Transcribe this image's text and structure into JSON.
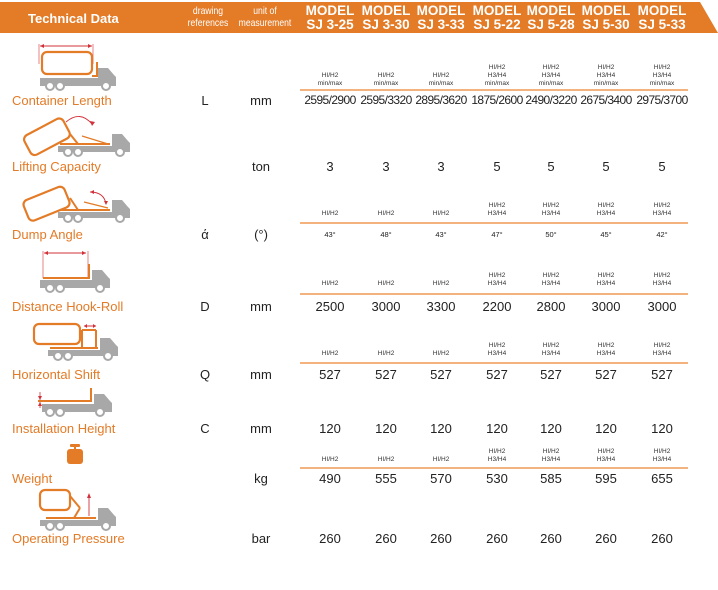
{
  "header": {
    "title": "Technical Data",
    "drawing_references_line1": "drawing",
    "drawing_references_line2": "references",
    "unit_line1": "unit of",
    "unit_line2": "measurement",
    "models": [
      {
        "line1": "MODEL",
        "line2": "SJ 3-25"
      },
      {
        "line1": "MODEL",
        "line2": "SJ 3-30"
      },
      {
        "line1": "MODEL",
        "line2": "SJ 3-33"
      },
      {
        "line1": "MODEL",
        "line2": "SJ 5-22"
      },
      {
        "line1": "MODEL",
        "line2": "SJ 5-28"
      },
      {
        "line1": "MODEL",
        "line2": "SJ 5-30"
      },
      {
        "line1": "MODEL",
        "line2": "SJ 5-33"
      }
    ]
  },
  "colors": {
    "accent": "#E37B27",
    "separator": "#F4B37E",
    "truck_gray": "#A8A8A8",
    "arrow_red": "#D3313A"
  },
  "rows": [
    {
      "label": "Container Length",
      "ref": "L",
      "unit": "mm",
      "icon": "container-length-icon",
      "notes": [
        {
          "l1": "",
          "l2": "HI/H2",
          "l3": "min/max"
        },
        {
          "l1": "",
          "l2": "HI/H2",
          "l3": "min/max"
        },
        {
          "l1": "",
          "l2": "HI/H2",
          "l3": "min/max"
        },
        {
          "l1": "HI/H2",
          "l2": "H3/H4",
          "l3": "min/max"
        },
        {
          "l1": "HI/H2",
          "l2": "H3/H4",
          "l3": "min/max"
        },
        {
          "l1": "HI/H2",
          "l2": "H3/H4",
          "l3": "min/max"
        },
        {
          "l1": "HI/H2",
          "l2": "H3/H4",
          "l3": "min/max"
        }
      ],
      "values": [
        "2595/2900",
        "2595/3320",
        "2895/3620",
        "1875/2600",
        "2490/3220",
        "2675/3400",
        "2975/3700"
      ]
    },
    {
      "label": "Lifting Capacity",
      "ref": "",
      "unit": "ton",
      "icon": "lifting-capacity-icon",
      "values": [
        "3",
        "3",
        "3",
        "5",
        "5",
        "5",
        "5"
      ]
    },
    {
      "label": "Dump Angle",
      "ref": "ά",
      "unit": "(°)",
      "icon": "dump-angle-icon",
      "notes": [
        {
          "l1": "",
          "l2": "HI/H2"
        },
        {
          "l1": "",
          "l2": "HI/H2"
        },
        {
          "l1": "",
          "l2": "HI/H2"
        },
        {
          "l1": "HI/H2",
          "l2": "H3/H4"
        },
        {
          "l1": "HI/H2",
          "l2": "H3/H4"
        },
        {
          "l1": "HI/H2",
          "l2": "H3/H4"
        },
        {
          "l1": "HI/H2",
          "l2": "H3/H4"
        }
      ],
      "values": [
        "43°",
        "48°",
        "43°",
        "47°",
        "50°",
        "45°",
        "42°"
      ]
    },
    {
      "label": "Distance Hook-Roll",
      "ref": "D",
      "unit": "mm",
      "icon": "distance-hook-roll-icon",
      "notes": [
        {
          "l1": "",
          "l2": "HI/H2"
        },
        {
          "l1": "",
          "l2": "HI/H2"
        },
        {
          "l1": "",
          "l2": "HI/H2"
        },
        {
          "l1": "HI/H2",
          "l2": "H3/H4"
        },
        {
          "l1": "HI/H2",
          "l2": "H3/H4"
        },
        {
          "l1": "HI/H2",
          "l2": "H3/H4"
        },
        {
          "l1": "HI/H2",
          "l2": "H3/H4"
        }
      ],
      "values": [
        "2500",
        "3000",
        "3300",
        "2200",
        "2800",
        "3000",
        "3000"
      ]
    },
    {
      "label": "Horizontal Shift",
      "ref": "Q",
      "unit": "mm",
      "icon": "horizontal-shift-icon",
      "notes": [
        {
          "l1": "",
          "l2": "HI/H2"
        },
        {
          "l1": "",
          "l2": "HI/H2"
        },
        {
          "l1": "",
          "l2": "HI/H2"
        },
        {
          "l1": "HI/H2",
          "l2": "H3/H4"
        },
        {
          "l1": "HI/H2",
          "l2": "H3/H4"
        },
        {
          "l1": "HI/H2",
          "l2": "H3/H4"
        },
        {
          "l1": "HI/H2",
          "l2": "H3/H4"
        }
      ],
      "values": [
        "527",
        "527",
        "527",
        "527",
        "527",
        "527",
        "527"
      ]
    },
    {
      "label": "Installation Height",
      "ref": "C",
      "unit": "mm",
      "icon": "installation-height-icon",
      "values": [
        "120",
        "120",
        "120",
        "120",
        "120",
        "120",
        "120"
      ]
    },
    {
      "label": "Weight",
      "ref": "",
      "unit": "kg",
      "icon": "weight-icon",
      "notes": [
        {
          "l1": "",
          "l2": "HI/H2"
        },
        {
          "l1": "",
          "l2": "HI/H2"
        },
        {
          "l1": "",
          "l2": "HI/H2"
        },
        {
          "l1": "HI/H2",
          "l2": "H3/H4"
        },
        {
          "l1": "HI/H2",
          "l2": "H3/H4"
        },
        {
          "l1": "HI/H2",
          "l2": "H3/H4"
        },
        {
          "l1": "HI/H2",
          "l2": "H3/H4"
        }
      ],
      "values": [
        "490",
        "555",
        "570",
        "530",
        "585",
        "595",
        "655"
      ]
    },
    {
      "label": "Operating Pressure",
      "ref": "",
      "unit": "bar",
      "icon": "operating-pressure-icon",
      "values": [
        "260",
        "260",
        "260",
        "260",
        "260",
        "260",
        "260"
      ]
    }
  ]
}
